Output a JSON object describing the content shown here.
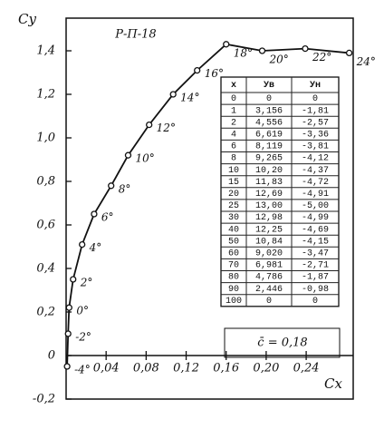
{
  "chart_data": {
    "type": "line",
    "title": "Р-П-18",
    "x_label": "Cx",
    "y_label": "Cy",
    "annotation": "c̄ = 0,18",
    "xlim": [
      0,
      0.287
    ],
    "ylim": [
      -0.2,
      1.55
    ],
    "xticks": [
      {
        "value": 0.04,
        "label": "0,04"
      },
      {
        "value": 0.08,
        "label": "0,08"
      },
      {
        "value": 0.12,
        "label": "0,12"
      },
      {
        "value": 0.16,
        "label": "0,16"
      },
      {
        "value": 0.2,
        "label": "0,20"
      },
      {
        "value": 0.24,
        "label": "0,24"
      }
    ],
    "yticks": [
      {
        "value": -0.2,
        "label": "-0,2"
      },
      0,
      {
        "value": 0.2,
        "label": "0,2"
      },
      {
        "value": 0.4,
        "label": "0,4"
      },
      {
        "value": 0.6,
        "label": "0,6"
      },
      {
        "value": 0.8,
        "label": "0,8"
      },
      {
        "value": 1.0,
        "label": "1,0"
      },
      {
        "value": 1.2,
        "label": "1,2"
      },
      {
        "value": 1.4,
        "label": "1,4"
      }
    ],
    "grid": false,
    "series": [
      {
        "color": "#111111",
        "x": [
          0.001,
          0.002,
          0.003,
          0.007,
          0.016,
          0.028,
          0.045,
          0.062,
          0.083,
          0.107,
          0.131,
          0.16,
          0.196,
          0.239,
          0.283
        ],
        "values": [
          -0.05,
          0.1,
          0.22,
          0.35,
          0.51,
          0.65,
          0.78,
          0.92,
          1.06,
          1.2,
          1.31,
          1.43,
          1.4,
          1.41,
          1.39
        ],
        "point_labels": [
          "-4°",
          "-2°",
          "0°",
          "2°",
          "4°",
          "6°",
          "8°",
          "10°",
          "12°",
          "14°",
          "16°",
          "18°",
          "20°",
          "22°",
          "24°"
        ]
      }
    ]
  },
  "table": {
    "headers": [
      "x",
      "Ув",
      "Ун"
    ],
    "rows": [
      [
        "0",
        "0",
        "0"
      ],
      [
        "1",
        "3,156",
        "-1,81"
      ],
      [
        "2",
        "4,556",
        "-2,57"
      ],
      [
        "4",
        "6,619",
        "-3,36"
      ],
      [
        "6",
        "8,119",
        "-3,81"
      ],
      [
        "8",
        "9,265",
        "-4,12"
      ],
      [
        "10",
        "10,20",
        "-4,37"
      ],
      [
        "15",
        "11,83",
        "-4,72"
      ],
      [
        "20",
        "12,69",
        "-4,91"
      ],
      [
        "25",
        "13,00",
        "-5,00"
      ],
      [
        "30",
        "12,98",
        "-4,99"
      ],
      [
        "40",
        "12,25",
        "-4,69"
      ],
      [
        "50",
        "10,84",
        "-4,15"
      ],
      [
        "60",
        "9,020",
        "-3,47"
      ],
      [
        "70",
        "6,981",
        "-2,71"
      ],
      [
        "80",
        "4,786",
        "-1,87"
      ],
      [
        "90",
        "2,446",
        "-0,98"
      ],
      [
        "100",
        "0",
        "0"
      ]
    ]
  }
}
